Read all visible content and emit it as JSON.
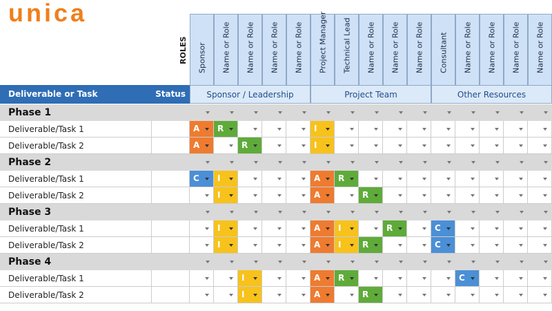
{
  "logo": "unica",
  "header": {
    "roles_label": "ROLES",
    "task_header": "Deliverable or Task",
    "status_header": "Status",
    "groups": [
      {
        "label": "Sponsor / Leadership",
        "roles": [
          "Sponsor",
          "Name or Role",
          "Name or Role",
          "Name or Role",
          "Name or Role"
        ]
      },
      {
        "label": "Project Team",
        "roles": [
          "Project Manager",
          "Technical Lead",
          "Name or Role",
          "Name or Role",
          "Name or Role"
        ]
      },
      {
        "label": "Other Resources",
        "roles": [
          "Consultant",
          "Name or Role",
          "Name or Role",
          "Name or Role",
          "Name or Role"
        ]
      }
    ]
  },
  "colors": {
    "A": "#ee7b30",
    "R": "#5fab3a",
    "I": "#f7c21c",
    "C": "#4b8fd6"
  },
  "phases": [
    {
      "name": "Phase 1",
      "tasks": [
        {
          "name": "Deliverable/Task 1",
          "cells": [
            "A",
            "R",
            null,
            null,
            null,
            "I",
            null,
            null,
            null,
            null,
            null,
            null,
            null,
            null,
            null
          ]
        },
        {
          "name": "Deliverable/Task 2",
          "cells": [
            "A",
            null,
            "R",
            null,
            null,
            "I",
            null,
            null,
            null,
            null,
            null,
            null,
            null,
            null,
            null
          ]
        }
      ]
    },
    {
      "name": "Phase 2",
      "tasks": [
        {
          "name": "Deliverable/Task 1",
          "cells": [
            "C",
            "I",
            null,
            null,
            null,
            "A",
            "R",
            null,
            null,
            null,
            null,
            null,
            null,
            null,
            null
          ]
        },
        {
          "name": "Deliverable/Task 2",
          "cells": [
            null,
            "I",
            null,
            null,
            null,
            "A",
            null,
            "R",
            null,
            null,
            null,
            null,
            null,
            null,
            null
          ]
        }
      ]
    },
    {
      "name": "Phase 3",
      "tasks": [
        {
          "name": "Deliverable/Task 1",
          "cells": [
            null,
            "I",
            null,
            null,
            null,
            "A",
            "I",
            null,
            "R",
            null,
            "C",
            null,
            null,
            null,
            null
          ]
        },
        {
          "name": "Deliverable/Task 2",
          "cells": [
            null,
            "I",
            null,
            null,
            null,
            "A",
            "I",
            "R",
            null,
            null,
            "C",
            null,
            null,
            null,
            null
          ]
        }
      ]
    },
    {
      "name": "Phase 4",
      "tasks": [
        {
          "name": "Deliverable/Task 1",
          "cells": [
            null,
            null,
            "I",
            null,
            null,
            "A",
            "R",
            null,
            null,
            null,
            null,
            "C",
            null,
            null,
            null
          ]
        },
        {
          "name": "Deliverable/Task 2",
          "cells": [
            null,
            null,
            "I",
            null,
            null,
            "A",
            null,
            "R",
            null,
            null,
            null,
            null,
            null,
            null,
            null
          ]
        }
      ]
    }
  ]
}
